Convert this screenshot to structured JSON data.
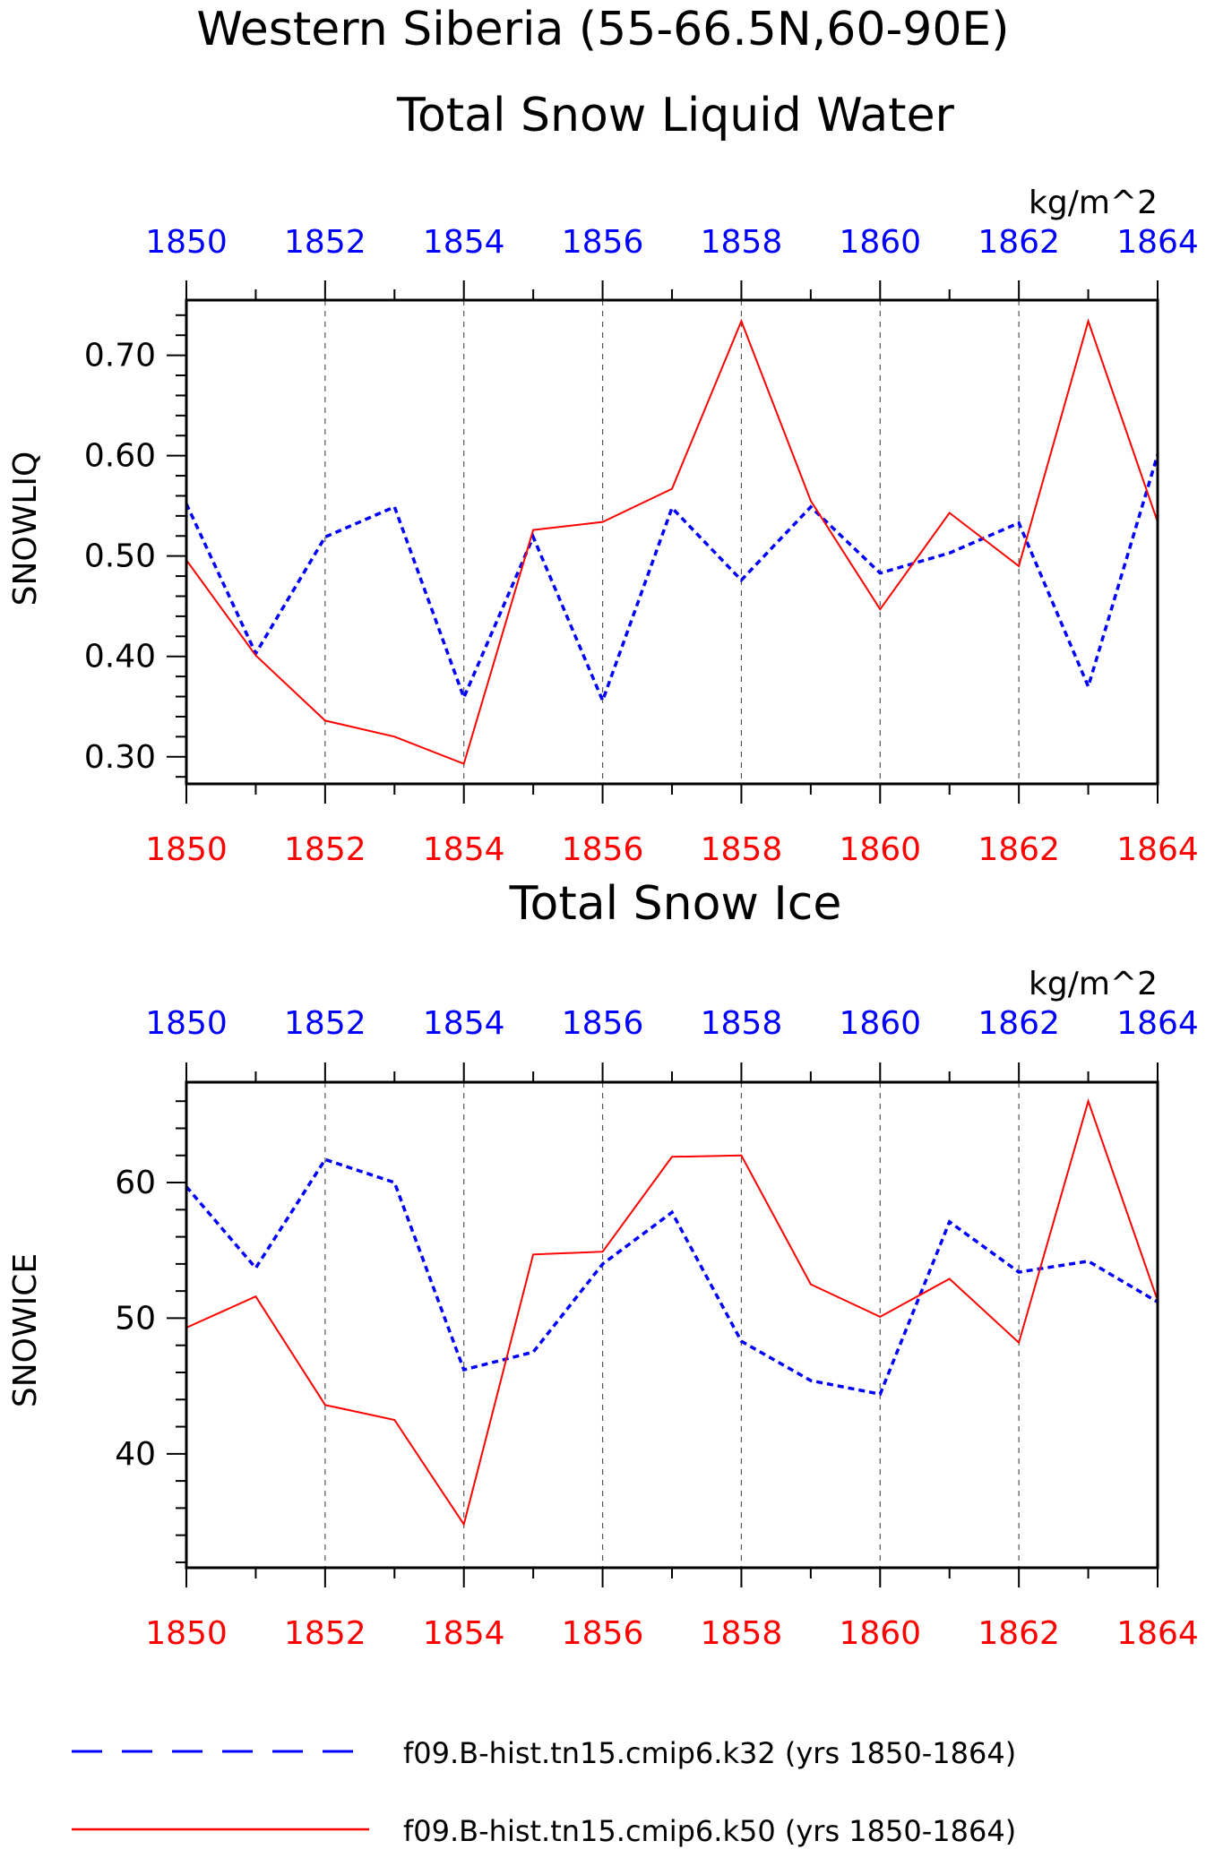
{
  "title": "Western Siberia (55-66.5N,60-90E)",
  "legend": {
    "k32_label": "f09.B-hist.tn15.cmip6.k32 (yrs 1850-1864)",
    "k50_label": "f09.B-hist.tn15.cmip6.k50 (yrs 1850-1864)"
  },
  "colors": {
    "k32": "#0000ff",
    "k50": "#ff0000",
    "axis": "#000000",
    "grid": "#555555"
  },
  "chart_data": [
    {
      "type": "line",
      "title": "Total Snow Liquid Water",
      "units": "kg/m^2",
      "ylabel": "SNOWLIQ",
      "x": [
        1850,
        1851,
        1852,
        1853,
        1854,
        1855,
        1856,
        1857,
        1858,
        1859,
        1860,
        1861,
        1862,
        1863,
        1864
      ],
      "xlim": [
        1850,
        1864
      ],
      "xticks": [
        "1850",
        "1852",
        "1854",
        "1856",
        "1858",
        "1860",
        "1862",
        "1864"
      ],
      "ylim": [
        0.273,
        0.755
      ],
      "yticks": [
        "0.30",
        "0.40",
        "0.50",
        "0.60",
        "0.70"
      ],
      "grid": "vertical dashed at labeled years",
      "legend": "bottom",
      "series": [
        {
          "name": "f09.B-hist.tn15.cmip6.k32 (yrs 1850-1864)",
          "style": "dashed",
          "color": "#0000ff",
          "values": [
            0.552,
            0.403,
            0.519,
            0.549,
            0.359,
            0.519,
            0.356,
            0.548,
            0.476,
            0.549,
            0.483,
            0.503,
            0.533,
            0.37,
            0.601
          ]
        },
        {
          "name": "f09.B-hist.tn15.cmip6.k50 (yrs 1850-1864)",
          "style": "solid",
          "color": "#ff0000",
          "values": [
            0.496,
            0.401,
            0.336,
            0.32,
            0.293,
            0.526,
            0.534,
            0.567,
            0.734,
            0.555,
            0.447,
            0.543,
            0.49,
            0.734,
            0.534
          ]
        }
      ]
    },
    {
      "type": "line",
      "title": "Total Snow Ice",
      "units": "kg/m^2",
      "ylabel": "SNOWICE",
      "x": [
        1850,
        1851,
        1852,
        1853,
        1854,
        1855,
        1856,
        1857,
        1858,
        1859,
        1860,
        1861,
        1862,
        1863,
        1864
      ],
      "xlim": [
        1850,
        1864
      ],
      "xticks": [
        "1850",
        "1852",
        "1854",
        "1856",
        "1858",
        "1860",
        "1862",
        "1864"
      ],
      "ylim": [
        31.6,
        67.4
      ],
      "yticks": [
        "40",
        "50",
        "60"
      ],
      "grid": "vertical dashed at labeled years",
      "legend": "bottom",
      "series": [
        {
          "name": "f09.B-hist.tn15.cmip6.k32 (yrs 1850-1864)",
          "style": "dashed",
          "color": "#0000ff",
          "values": [
            59.7,
            53.7,
            61.7,
            60.0,
            46.2,
            47.5,
            54.0,
            57.8,
            48.3,
            45.4,
            44.4,
            57.1,
            53.4,
            54.2,
            51.2
          ]
        },
        {
          "name": "f09.B-hist.tn15.cmip6.k50 (yrs 1850-1864)",
          "style": "solid",
          "color": "#ff0000",
          "values": [
            49.3,
            51.6,
            43.6,
            42.5,
            34.8,
            54.7,
            54.9,
            61.9,
            62.0,
            52.5,
            50.1,
            52.9,
            48.2,
            66.0,
            51.3
          ]
        }
      ]
    }
  ]
}
